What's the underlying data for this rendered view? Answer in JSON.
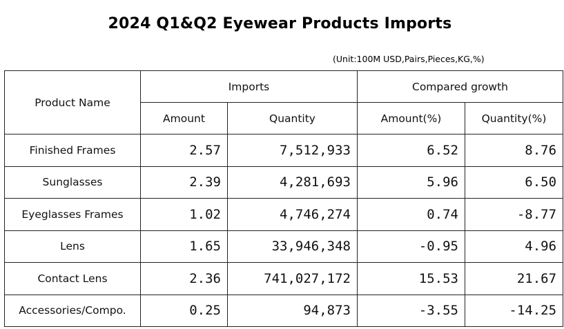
{
  "title": "2024 Q1&Q2 Eyewear Products Imports",
  "unit_note": "(Unit:100M USD,Pairs,Pieces,KG,%)",
  "header": {
    "product_name": "Product Name",
    "imports": "Imports",
    "compared_growth": "Compared growth",
    "amount": "Amount",
    "quantity": "Quantity",
    "amount_pct": "Amount(%)",
    "quantity_pct": "Quantity(%)"
  },
  "rows": [
    {
      "name": "Finished Frames",
      "amount": "2.57",
      "quantity": "7,512,933",
      "amount_growth": "6.52",
      "quantity_growth": "8.76"
    },
    {
      "name": "Sunglasses",
      "amount": "2.39",
      "quantity": "4,281,693",
      "amount_growth": "5.96",
      "quantity_growth": "6.50"
    },
    {
      "name": "Eyeglasses Frames",
      "amount": "1.02",
      "quantity": "4,746,274",
      "amount_growth": "0.74",
      "quantity_growth": "-8.77"
    },
    {
      "name": "Lens",
      "amount": "1.65",
      "quantity": "33,946,348",
      "amount_growth": "-0.95",
      "quantity_growth": "4.96"
    },
    {
      "name": "Contact Lens",
      "amount": "2.36",
      "quantity": "741,027,172",
      "amount_growth": "15.53",
      "quantity_growth": "21.67"
    },
    {
      "name": "Accessories/Compo.",
      "amount": "0.25",
      "quantity": "94,873",
      "amount_growth": "-3.55",
      "quantity_growth": "-14.25"
    }
  ]
}
